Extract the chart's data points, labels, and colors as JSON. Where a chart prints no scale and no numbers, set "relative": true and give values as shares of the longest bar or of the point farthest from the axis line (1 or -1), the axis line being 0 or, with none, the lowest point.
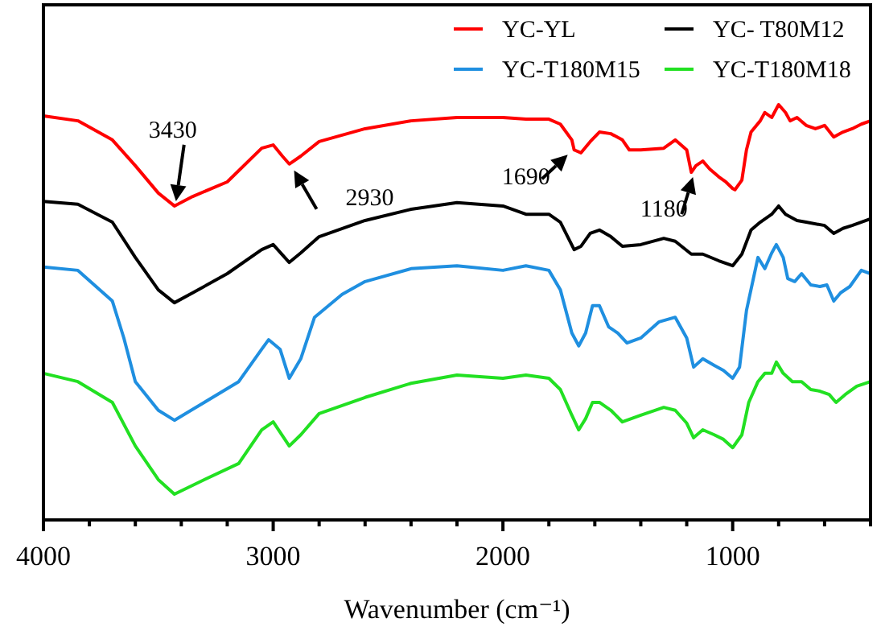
{
  "chart_data": {
    "type": "line",
    "relative": true,
    "xlabel": "Wavenumber (cm⁻¹)",
    "xlim": [
      4000,
      400
    ],
    "xticks": [
      4000,
      {
        "value": 3800,
        "label": null
      },
      {
        "value": 3600,
        "label": null
      },
      {
        "value": 3400,
        "label": null
      },
      {
        "value": 3200,
        "label": null
      },
      3000,
      {
        "value": 2800,
        "label": null
      },
      {
        "value": 2600,
        "label": null
      },
      {
        "value": 2400,
        "label": null
      },
      {
        "value": 2200,
        "label": null
      },
      2000,
      {
        "value": 1800,
        "label": null
      },
      {
        "value": 1600,
        "label": null
      },
      {
        "value": 1400,
        "label": null
      },
      {
        "value": 1200,
        "label": null
      },
      1000,
      {
        "value": 800,
        "label": null
      },
      {
        "value": 600,
        "label": null
      },
      {
        "value": 400,
        "label": null
      }
    ],
    "grid": false,
    "legend": "top right",
    "line_style": "solid",
    "marker": "none",
    "annotations": [
      {
        "text": "3430",
        "x": 3430,
        "y": 0.756
      },
      {
        "text": "2930",
        "x": 2930,
        "y": 0.857
      },
      {
        "text": "1690",
        "x": 1690,
        "y": 0.891
      },
      {
        "text": "1180",
        "x": 1180,
        "y": 0.837
      }
    ],
    "series": [
      {
        "name": "YC-YL",
        "color": "#ff0000",
        "x": [
          4000,
          3850,
          3700,
          3600,
          3500,
          3430,
          3350,
          3200,
          3050,
          3000,
          2960,
          2930,
          2880,
          2800,
          2600,
          2400,
          2200,
          2000,
          1900,
          1800,
          1750,
          1700,
          1690,
          1660,
          1620,
          1580,
          1530,
          1480,
          1450,
          1400,
          1300,
          1250,
          1200,
          1180,
          1160,
          1130,
          1100,
          1060,
          1030,
          1000,
          990,
          960,
          940,
          920,
          880,
          860,
          830,
          800,
          770,
          750,
          720,
          680,
          640,
          600,
          560,
          520,
          480,
          440,
          400
        ],
        "values": [
          0.973,
          0.961,
          0.915,
          0.853,
          0.787,
          0.756,
          0.779,
          0.814,
          0.895,
          0.903,
          0.876,
          0.857,
          0.876,
          0.911,
          0.942,
          0.961,
          0.969,
          0.969,
          0.965,
          0.965,
          0.953,
          0.915,
          0.891,
          0.884,
          0.911,
          0.934,
          0.93,
          0.915,
          0.891,
          0.891,
          0.895,
          0.915,
          0.891,
          0.837,
          0.853,
          0.864,
          0.845,
          0.826,
          0.814,
          0.798,
          0.795,
          0.818,
          0.891,
          0.934,
          0.961,
          0.981,
          0.969,
          1.0,
          0.981,
          0.961,
          0.969,
          0.95,
          0.942,
          0.95,
          0.922,
          0.934,
          0.942,
          0.953,
          0.961
        ]
      },
      {
        "name": "YC- T80M12",
        "color": "#000000",
        "x": [
          4000,
          3850,
          3700,
          3600,
          3500,
          3430,
          3350,
          3200,
          3050,
          3000,
          2930,
          2880,
          2800,
          2600,
          2400,
          2200,
          2000,
          1900,
          1800,
          1750,
          1690,
          1660,
          1620,
          1580,
          1530,
          1480,
          1400,
          1300,
          1250,
          1180,
          1130,
          1060,
          1000,
          960,
          920,
          880,
          830,
          800,
          770,
          720,
          680,
          600,
          560,
          520,
          480,
          400
        ],
        "values": [
          0.767,
          0.76,
          0.717,
          0.632,
          0.554,
          0.523,
          0.547,
          0.593,
          0.651,
          0.663,
          0.62,
          0.643,
          0.682,
          0.721,
          0.748,
          0.764,
          0.756,
          0.736,
          0.736,
          0.717,
          0.651,
          0.659,
          0.69,
          0.698,
          0.682,
          0.659,
          0.663,
          0.678,
          0.671,
          0.64,
          0.64,
          0.624,
          0.612,
          0.64,
          0.698,
          0.717,
          0.736,
          0.756,
          0.736,
          0.721,
          0.717,
          0.709,
          0.69,
          0.702,
          0.709,
          0.725
        ]
      },
      {
        "name": "YC-T180M15",
        "color": "#1f8fe0",
        "x": [
          4000,
          3850,
          3700,
          3650,
          3600,
          3500,
          3430,
          3300,
          3150,
          3050,
          3020,
          2970,
          2930,
          2880,
          2820,
          2700,
          2600,
          2400,
          2200,
          2000,
          1900,
          1800,
          1750,
          1700,
          1670,
          1640,
          1610,
          1580,
          1540,
          1500,
          1460,
          1400,
          1320,
          1250,
          1200,
          1170,
          1130,
          1080,
          1040,
          1000,
          970,
          940,
          910,
          890,
          860,
          830,
          810,
          780,
          760,
          730,
          700,
          660,
          620,
          590,
          560,
          530,
          490,
          440,
          400
        ],
        "values": [
          0.609,
          0.601,
          0.527,
          0.438,
          0.333,
          0.264,
          0.24,
          0.283,
          0.333,
          0.411,
          0.434,
          0.411,
          0.341,
          0.388,
          0.488,
          0.543,
          0.574,
          0.605,
          0.612,
          0.601,
          0.612,
          0.601,
          0.554,
          0.45,
          0.419,
          0.45,
          0.516,
          0.516,
          0.465,
          0.45,
          0.426,
          0.438,
          0.477,
          0.488,
          0.438,
          0.368,
          0.388,
          0.372,
          0.36,
          0.341,
          0.368,
          0.504,
          0.581,
          0.632,
          0.605,
          0.643,
          0.663,
          0.632,
          0.581,
          0.574,
          0.593,
          0.566,
          0.562,
          0.566,
          0.527,
          0.547,
          0.562,
          0.601,
          0.593
        ]
      },
      {
        "name": "YC-T180M18",
        "color": "#22e022",
        "x": [
          4000,
          3850,
          3700,
          3600,
          3500,
          3430,
          3300,
          3150,
          3050,
          3000,
          2930,
          2880,
          2800,
          2600,
          2400,
          2200,
          2000,
          1900,
          1800,
          1750,
          1700,
          1670,
          1640,
          1610,
          1580,
          1530,
          1480,
          1400,
          1300,
          1250,
          1200,
          1170,
          1130,
          1080,
          1040,
          1000,
          960,
          930,
          890,
          860,
          830,
          810,
          780,
          740,
          700,
          660,
          620,
          580,
          550,
          510,
          460,
          400
        ],
        "values": [
          0.353,
          0.333,
          0.283,
          0.178,
          0.097,
          0.062,
          0.097,
          0.136,
          0.217,
          0.236,
          0.178,
          0.205,
          0.256,
          0.295,
          0.329,
          0.349,
          0.341,
          0.349,
          0.341,
          0.314,
          0.252,
          0.217,
          0.244,
          0.283,
          0.283,
          0.264,
          0.236,
          0.252,
          0.271,
          0.264,
          0.233,
          0.198,
          0.217,
          0.205,
          0.194,
          0.174,
          0.205,
          0.283,
          0.333,
          0.353,
          0.353,
          0.38,
          0.353,
          0.333,
          0.333,
          0.314,
          0.31,
          0.302,
          0.283,
          0.302,
          0.322,
          0.333
        ]
      }
    ]
  }
}
